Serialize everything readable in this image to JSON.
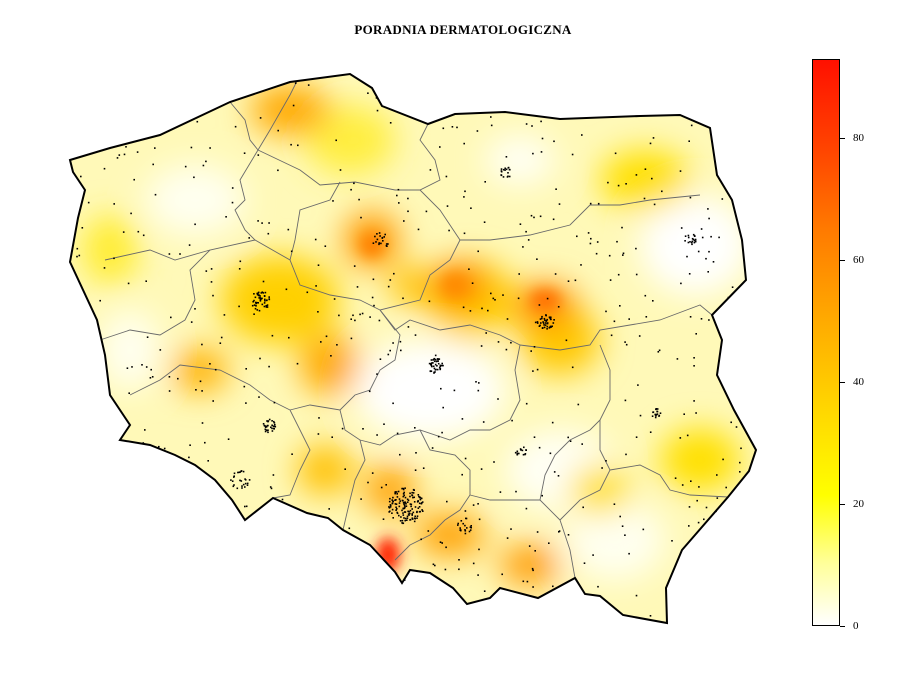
{
  "title": "PORADNIA DERMATOLOGICZNA",
  "legend": {
    "min": 0,
    "max": 93,
    "ticks": [
      {
        "label": "0",
        "value": 0
      },
      {
        "label": "20",
        "value": 20
      },
      {
        "label": "40",
        "value": 40
      },
      {
        "label": "60",
        "value": 60
      },
      {
        "label": "80",
        "value": 80
      }
    ],
    "colors": [
      "#ffffff",
      "#ffff00",
      "#ffc000",
      "#ff8000",
      "#ff1000"
    ]
  }
}
